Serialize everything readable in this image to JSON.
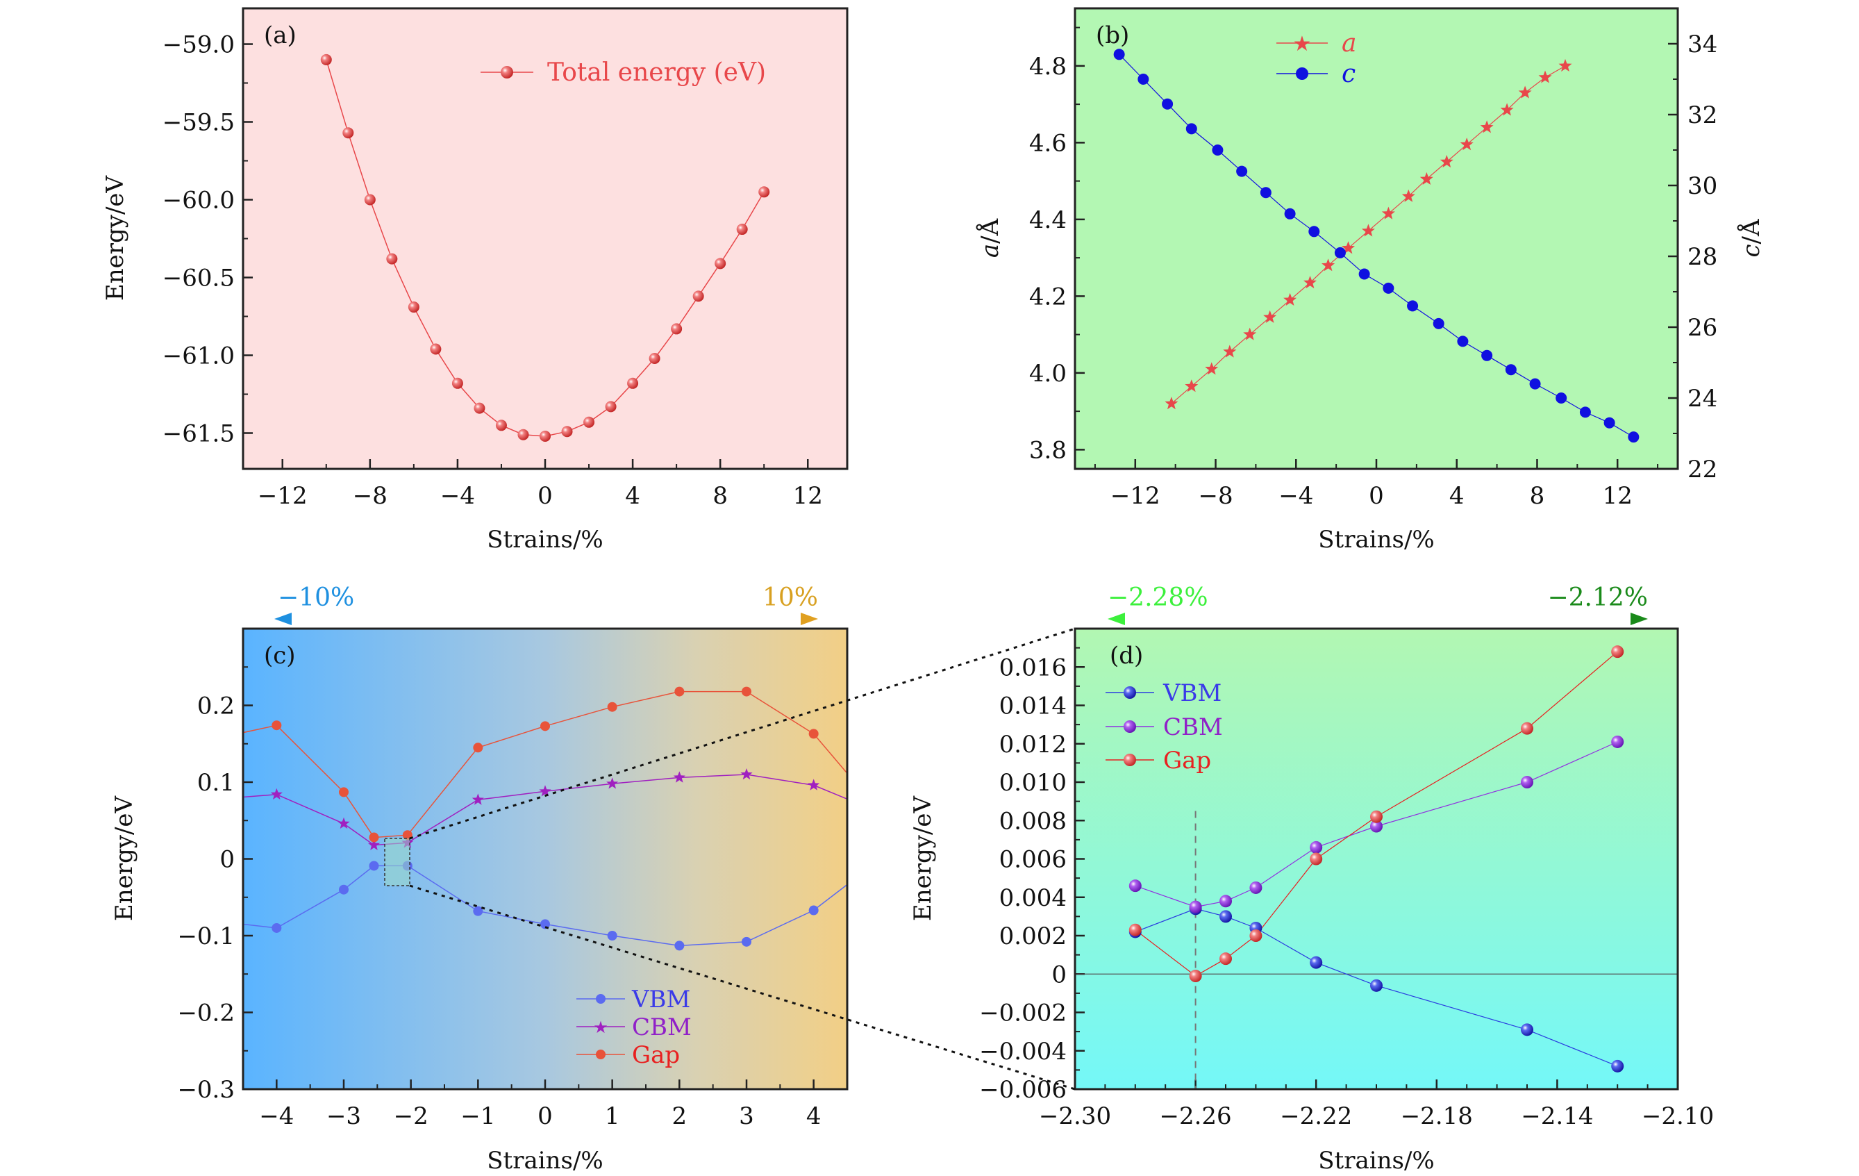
{
  "chart_data": [
    {
      "panel": "a",
      "type": "line",
      "panel_label": "(a)",
      "xlabel": "Strains/%",
      "ylabel": "Energy/eV",
      "xlim": [
        -13.8,
        13.8
      ],
      "ylim": [
        -61.73,
        -58.77
      ],
      "xticks": [
        -12,
        -8,
        -4,
        0,
        4,
        8,
        12
      ],
      "yticks": [
        -59.0,
        -59.5,
        -60.0,
        -60.5,
        -61.0,
        -61.5
      ],
      "x_tick_labels": [
        "−12",
        "−8",
        "−4",
        "0",
        "4",
        "8",
        "12"
      ],
      "y_tick_labels": [
        "−59.0",
        "−59.5",
        "−60.0",
        "−60.5",
        "−61.0",
        "−61.5"
      ],
      "background": "#fde0e0",
      "legend_position": "top-right",
      "series": [
        {
          "name": "Total energy (eV)",
          "color": "#e8474a",
          "x": [
            -10,
            -9,
            -8,
            -7,
            -6,
            -5,
            -4,
            -3,
            -2,
            -1,
            0,
            1,
            2,
            3,
            4,
            5,
            6,
            7,
            8,
            9,
            10
          ],
          "y": [
            -59.1,
            -59.57,
            -60.0,
            -60.38,
            -60.69,
            -60.96,
            -61.18,
            -61.34,
            -61.45,
            -61.51,
            -61.52,
            -61.49,
            -61.43,
            -61.33,
            -61.18,
            -61.02,
            -60.83,
            -60.62,
            -60.41,
            -60.19,
            -59.95
          ]
        }
      ]
    },
    {
      "panel": "b",
      "type": "scatter",
      "panel_label": "(b)",
      "xlabel": "Strains/%",
      "ylabel_left_italic": "a",
      "ylabel_left_suffix": "/Å",
      "ylabel_right_italic": "c",
      "ylabel_right_suffix": "/Å",
      "xlim": [
        -15,
        15
      ],
      "ylim_left": [
        3.75,
        4.95
      ],
      "ylim_right": [
        22,
        35
      ],
      "xticks": [
        -12,
        -8,
        -4,
        0,
        4,
        8,
        12
      ],
      "yticks_left": [
        3.8,
        4.0,
        4.2,
        4.4,
        4.6,
        4.8
      ],
      "yticks_right": [
        22,
        24,
        26,
        28,
        30,
        32,
        34
      ],
      "x_tick_labels": [
        "−12",
        "−8",
        "−4",
        "0",
        "4",
        "8",
        "12"
      ],
      "y_tick_labels_left": [
        "3.8",
        "4.0",
        "4.2",
        "4.4",
        "4.6",
        "4.8"
      ],
      "y_tick_labels_right": [
        "22",
        "24",
        "26",
        "28",
        "30",
        "32",
        "34"
      ],
      "background": "#b3f7b3",
      "legend_position": "top-center",
      "series": [
        {
          "name": "a",
          "axis": "left",
          "marker": "star",
          "color": "#e8474a",
          "x": [
            -10.2,
            -9.2,
            -8.2,
            -7.3,
            -6.3,
            -5.3,
            -4.3,
            -3.3,
            -2.4,
            -1.4,
            -0.4,
            0.6,
            1.6,
            2.5,
            3.5,
            4.5,
            5.5,
            6.5,
            7.4,
            8.4,
            9.4
          ],
          "y": [
            3.92,
            3.965,
            4.01,
            4.055,
            4.1,
            4.145,
            4.19,
            4.235,
            4.28,
            4.325,
            4.37,
            4.415,
            4.46,
            4.505,
            4.55,
            4.595,
            4.64,
            4.685,
            4.73,
            4.77,
            4.8
          ]
        },
        {
          "name": "c",
          "axis": "right",
          "marker": "circle",
          "color": "#1010e0",
          "x": [
            -12.8,
            -11.6,
            -10.4,
            -9.2,
            -7.9,
            -6.7,
            -5.5,
            -4.3,
            -3.1,
            -1.8,
            -0.6,
            0.6,
            1.8,
            3.1,
            4.3,
            5.5,
            6.7,
            7.9,
            9.2,
            10.4,
            11.6,
            12.8
          ],
          "y": [
            33.7,
            33.0,
            32.3,
            31.6,
            31.0,
            30.4,
            29.8,
            29.2,
            28.7,
            28.1,
            27.5,
            27.1,
            26.6,
            26.1,
            25.6,
            25.2,
            24.8,
            24.4,
            24.0,
            23.6,
            23.3,
            22.9
          ]
        }
      ]
    },
    {
      "panel": "c",
      "type": "line",
      "panel_label": "(c)",
      "xlabel": "Strains/%",
      "ylabel": "Energy/eV",
      "xlim": [
        -4.5,
        4.5
      ],
      "ylim": [
        -0.3,
        0.3
      ],
      "xticks": [
        -4,
        -3,
        -2,
        -1,
        0,
        1,
        2,
        3,
        4
      ],
      "yticks": [
        0.2,
        0.1,
        0,
        -0.1,
        -0.2,
        -0.3
      ],
      "x_tick_labels": [
        "−4",
        "−3",
        "−2",
        "−1",
        "0",
        "1",
        "2",
        "3",
        "4"
      ],
      "y_tick_labels": [
        "0.2",
        "0.1",
        "0",
        "−0.1",
        "−0.2",
        "−0.3"
      ],
      "background_gradient": [
        "#5ab4ff",
        "#a5c9e3",
        "#d9d1b2",
        "#f2cf86"
      ],
      "arrow_left_label": "−10%",
      "arrow_right_label": "10%",
      "arrow_left_color": "#1e90e0",
      "arrow_right_color": "#e0a020",
      "legend_position": "bottom-right",
      "series": [
        {
          "name": "VBM",
          "marker": "circle",
          "color": "#5b6bf0",
          "x": [
            -5,
            -4,
            -3,
            -2.55,
            -2.05,
            -1,
            0,
            1,
            2,
            3,
            4,
            5
          ],
          "y": [
            -0.08,
            -0.09,
            -0.04,
            -0.009,
            -0.009,
            -0.068,
            -0.085,
            -0.1,
            -0.113,
            -0.108,
            -0.067,
            0.0
          ]
        },
        {
          "name": "CBM",
          "marker": "star",
          "color": "#a020c0",
          "x": [
            -5,
            -4,
            -3,
            -2.55,
            -2.05,
            -1,
            0,
            1,
            2,
            3,
            4,
            5
          ],
          "y": [
            0.077,
            0.084,
            0.046,
            0.018,
            0.021,
            0.077,
            0.088,
            0.098,
            0.106,
            0.11,
            0.096,
            0.06
          ]
        },
        {
          "name": "Gap",
          "marker": "circle",
          "color": "#e8533a",
          "x": [
            -5,
            -4,
            -3,
            -2.55,
            -2.05,
            -1,
            0,
            1,
            2,
            3,
            4,
            5
          ],
          "y": [
            0.155,
            0.174,
            0.087,
            0.028,
            0.031,
            0.145,
            0.173,
            0.198,
            0.218,
            0.218,
            0.163,
            0.06
          ]
        }
      ]
    },
    {
      "panel": "d",
      "type": "line",
      "panel_label": "(d)",
      "xlabel": "Strains/%",
      "ylabel": "Energy/eV",
      "xlim": [
        -2.3,
        -2.1
      ],
      "ylim": [
        -0.006,
        0.018
      ],
      "xticks": [
        -2.3,
        -2.26,
        -2.22,
        -2.18,
        -2.14,
        -2.1
      ],
      "yticks": [
        0.016,
        0.014,
        0.012,
        0.01,
        0.008,
        0.006,
        0.004,
        0.002,
        0,
        -0.002,
        -0.004,
        -0.006
      ],
      "x_tick_labels": [
        "−2.30",
        "−2.26",
        "−2.22",
        "−2.18",
        "−2.14",
        "−2.10"
      ],
      "y_tick_labels": [
        "0.016",
        "0.014",
        "0.012",
        "0.010",
        "0.008",
        "0.006",
        "0.004",
        "0.002",
        "0",
        "−0.002",
        "−0.004",
        "−0.006"
      ],
      "background_gradient": [
        "#b2f7b2",
        "#74f8f8"
      ],
      "arrow_left_label": "−2.28%",
      "arrow_right_label": "−2.12%",
      "arrow_left_color": "#3cf03c",
      "arrow_right_color": "#1a8a1a",
      "vertical_reference_x": -2.26,
      "legend_position": "top-left",
      "series": [
        {
          "name": "VBM",
          "marker": "circle",
          "color": "#2a3de0",
          "x": [
            -2.28,
            -2.26,
            -2.25,
            -2.24,
            -2.22,
            -2.2,
            -2.15,
            -2.12
          ],
          "y": [
            0.0022,
            0.0034,
            0.003,
            0.0024,
            0.0006,
            -0.0006,
            -0.0029,
            -0.0048
          ]
        },
        {
          "name": "CBM",
          "marker": "circle",
          "color": "#9030e0",
          "x": [
            -2.28,
            -2.26,
            -2.25,
            -2.24,
            -2.22,
            -2.2,
            -2.15,
            -2.12
          ],
          "y": [
            0.0046,
            0.0035,
            0.0038,
            0.0045,
            0.0066,
            0.0077,
            0.01,
            0.0121
          ]
        },
        {
          "name": "Gap",
          "marker": "circle",
          "color": "#e81e1e",
          "x": [
            -2.28,
            -2.26,
            -2.25,
            -2.24,
            -2.22,
            -2.2,
            -2.15,
            -2.12
          ],
          "y": [
            0.0023,
            -0.0001,
            0.0008,
            0.002,
            0.006,
            0.0082,
            0.0128,
            0.0168
          ]
        }
      ]
    }
  ]
}
